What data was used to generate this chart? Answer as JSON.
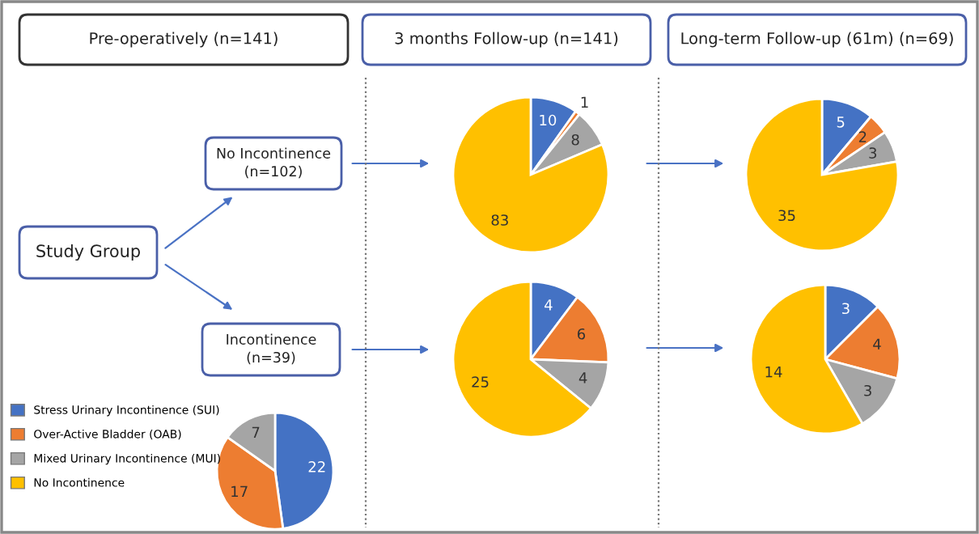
{
  "chart_data": [
    {
      "type": "other",
      "annotations": [
        "Pre-operatively (n=141)",
        "3 months Follow-up (n=141)",
        "Long-term Follow-up (61m) (n=69)",
        "Study Group",
        "No Incontinence\n(n=102)",
        "Incontinence\n(n=39)"
      ]
    },
    {
      "type": "pie",
      "categories": [
        "Stress Urinary Incontinence (SUI)",
        "Over-Active Bladder (OAB)",
        "Mixed Urinary Incontinence (MUI)",
        "No Incontinence"
      ],
      "values": [
        22,
        17,
        7,
        null
      ],
      "colors": [
        "#4472c4",
        "#ed7d31",
        "#a5a5a5",
        "#ffc000"
      ],
      "data_labels": true,
      "legend": "left"
    },
    {
      "type": "pie",
      "categories": [
        null,
        null,
        null,
        null
      ],
      "values": [
        10,
        1,
        8,
        83
      ],
      "colors": [
        "#4472c4",
        "#ed7d31",
        "#a5a5a5",
        "#ffc000"
      ],
      "data_labels": true
    },
    {
      "type": "pie",
      "categories": [
        null,
        null,
        null,
        null
      ],
      "values": [
        5,
        2,
        3,
        35
      ],
      "colors": [
        "#4472c4",
        "#ed7d31",
        "#a5a5a5",
        "#ffc000"
      ],
      "data_labels": true
    },
    {
      "type": "pie",
      "categories": [
        null,
        null,
        null,
        null
      ],
      "values": [
        4,
        6,
        4,
        25
      ],
      "colors": [
        "#4472c4",
        "#ed7d31",
        "#a5a5a5",
        "#ffc000"
      ],
      "data_labels": true
    },
    {
      "type": "pie",
      "categories": [
        null,
        null,
        null,
        null
      ],
      "values": [
        3,
        4,
        3,
        14
      ],
      "colors": [
        "#4472c4",
        "#ed7d31",
        "#a5a5a5",
        "#ffc000"
      ],
      "data_labels": true
    }
  ]
}
